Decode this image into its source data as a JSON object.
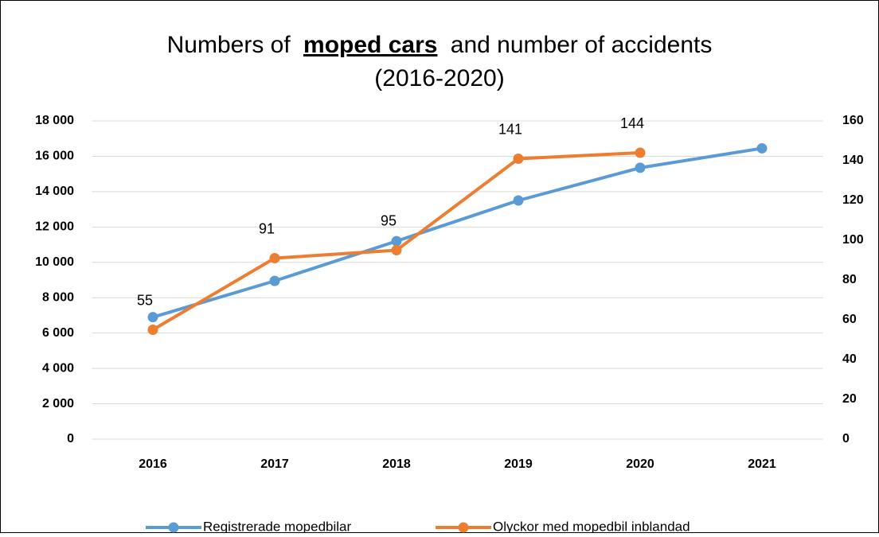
{
  "chart_data": {
    "type": "line",
    "title": [
      "Numbers of",
      "moped cars",
      "and number of accidents",
      "(2016-2020)"
    ],
    "categories": [
      "2016",
      "2017",
      "2018",
      "2019",
      "2020",
      "2021"
    ],
    "series": [
      {
        "name": "Registrerade mopedbilar",
        "color": "#5b9bd5",
        "values": [
          6900,
          8950,
          11200,
          13500,
          15350,
          16450
        ]
      },
      {
        "name": "Olyckor med mopedbil inblandad",
        "color": "#ed7d31",
        "axis": "y2",
        "values": [
          55,
          91,
          95,
          141,
          144,
          null
        ],
        "data_labels": true
      }
    ],
    "ylim": [
      0,
      18000
    ],
    "yticks": [
      0,
      {
        "value": 2000,
        "label": "2 000"
      },
      {
        "value": 4000,
        "label": "4 000"
      },
      {
        "value": 6000,
        "label": "6 000"
      },
      {
        "value": 8000,
        "label": "8 000"
      },
      {
        "value": 10000,
        "label": "10 000"
      },
      {
        "value": 12000,
        "label": "12 000"
      },
      {
        "value": 14000,
        "label": "14 000"
      },
      {
        "value": 16000,
        "label": "16 000"
      },
      {
        "value": 18000,
        "label": "18 000"
      }
    ],
    "y2lim": [
      0,
      160
    ],
    "y2ticks": [
      0,
      20,
      40,
      60,
      80,
      100,
      120,
      140,
      160
    ],
    "grid": true,
    "legend": "bottom"
  }
}
